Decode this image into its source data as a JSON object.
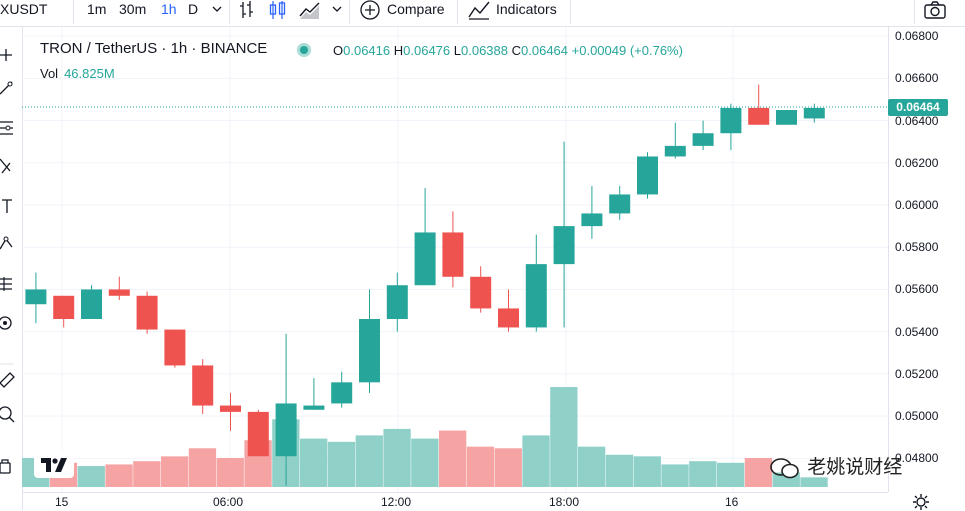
{
  "toolbar": {
    "symbol": "XUSDT",
    "intervals": [
      "1m",
      "30m",
      "1h",
      "D"
    ],
    "active_interval": "1h",
    "compare_label": "Compare",
    "indicators_label": "Indicators"
  },
  "legend": {
    "title": "TRON / TetherUS · 1h · BINANCE",
    "open_label": "O",
    "open": "0.06416",
    "high_label": "H",
    "high": "0.06476",
    "low_label": "L",
    "low": "0.06388",
    "close_label": "C",
    "close": "0.06464",
    "change": "+0.00049 (+0.76%)",
    "vol_label": "Vol",
    "vol_value": "46.825M"
  },
  "price_axis": {
    "ticks": [
      "0.06800",
      "0.06600",
      "0.06400",
      "0.06200",
      "0.06000",
      "0.05800",
      "0.05600",
      "0.05400",
      "0.05200",
      "0.05000",
      "0.04800"
    ],
    "last_price": "0.06464"
  },
  "time_axis": {
    "labels": [
      "15",
      "06:00",
      "12:00",
      "18:00",
      "16"
    ]
  },
  "watermark": "老姚说财经",
  "colors": {
    "up": "#26a69a",
    "down": "#ef5350",
    "up_vol": "#8fd0c8",
    "down_vol": "#f5a3a3",
    "accent": "#2962ff"
  },
  "chart_data": {
    "type": "candlestick",
    "interval": "1h",
    "ylim": [
      0.0465,
      0.0681
    ],
    "candles": [
      {
        "o": 0.0553,
        "h": 0.0568,
        "l": 0.0544,
        "c": 0.056,
        "v": 18
      },
      {
        "o": 0.0557,
        "h": 0.0557,
        "l": 0.0542,
        "c": 0.0546,
        "v": 15
      },
      {
        "o": 0.0546,
        "h": 0.0562,
        "l": 0.0546,
        "c": 0.056,
        "v": 13
      },
      {
        "o": 0.056,
        "h": 0.0566,
        "l": 0.0555,
        "c": 0.0557,
        "v": 14
      },
      {
        "o": 0.0557,
        "h": 0.0559,
        "l": 0.0539,
        "c": 0.0541,
        "v": 16
      },
      {
        "o": 0.0541,
        "h": 0.0541,
        "l": 0.0523,
        "c": 0.0524,
        "v": 19
      },
      {
        "o": 0.0524,
        "h": 0.0527,
        "l": 0.0501,
        "c": 0.0505,
        "v": 24
      },
      {
        "o": 0.0505,
        "h": 0.0511,
        "l": 0.0493,
        "c": 0.0502,
        "v": 18
      },
      {
        "o": 0.0502,
        "h": 0.0503,
        "l": 0.0481,
        "c": 0.0481,
        "v": 29
      },
      {
        "o": 0.0481,
        "h": 0.0539,
        "l": 0.0467,
        "c": 0.0506,
        "v": 42
      },
      {
        "o": 0.0503,
        "h": 0.0518,
        "l": 0.0503,
        "c": 0.0505,
        "v": 30
      },
      {
        "o": 0.0506,
        "h": 0.0521,
        "l": 0.0504,
        "c": 0.0516,
        "v": 28
      },
      {
        "o": 0.0516,
        "h": 0.056,
        "l": 0.0511,
        "c": 0.0546,
        "v": 32
      },
      {
        "o": 0.0546,
        "h": 0.0568,
        "l": 0.054,
        "c": 0.0562,
        "v": 36
      },
      {
        "o": 0.0562,
        "h": 0.0608,
        "l": 0.0562,
        "c": 0.0587,
        "v": 30
      },
      {
        "o": 0.0587,
        "h": 0.0597,
        "l": 0.0561,
        "c": 0.0566,
        "v": 35
      },
      {
        "o": 0.0566,
        "h": 0.0571,
        "l": 0.0549,
        "c": 0.0551,
        "v": 25
      },
      {
        "o": 0.0551,
        "h": 0.056,
        "l": 0.054,
        "c": 0.0542,
        "v": 24
      },
      {
        "o": 0.0542,
        "h": 0.0586,
        "l": 0.054,
        "c": 0.0572,
        "v": 32
      },
      {
        "o": 0.0572,
        "h": 0.063,
        "l": 0.0542,
        "c": 0.059,
        "v": 62
      },
      {
        "o": 0.059,
        "h": 0.0609,
        "l": 0.0584,
        "c": 0.0596,
        "v": 25
      },
      {
        "o": 0.0596,
        "h": 0.0609,
        "l": 0.0593,
        "c": 0.0605,
        "v": 20
      },
      {
        "o": 0.0605,
        "h": 0.0625,
        "l": 0.0603,
        "c": 0.0623,
        "v": 19
      },
      {
        "o": 0.0623,
        "h": 0.0639,
        "l": 0.0622,
        "c": 0.0628,
        "v": 14
      },
      {
        "o": 0.0628,
        "h": 0.064,
        "l": 0.0626,
        "c": 0.0634,
        "v": 16
      },
      {
        "o": 0.0634,
        "h": 0.0648,
        "l": 0.0626,
        "c": 0.0646,
        "v": 15
      },
      {
        "o": 0.0646,
        "h": 0.0657,
        "l": 0.0638,
        "c": 0.0638,
        "v": 18
      },
      {
        "o": 0.0638,
        "h": 0.0645,
        "l": 0.0638,
        "c": 0.0645,
        "v": 9
      },
      {
        "o": 0.0641,
        "h": 0.0648,
        "l": 0.0639,
        "c": 0.0646,
        "v": 6
      }
    ]
  }
}
